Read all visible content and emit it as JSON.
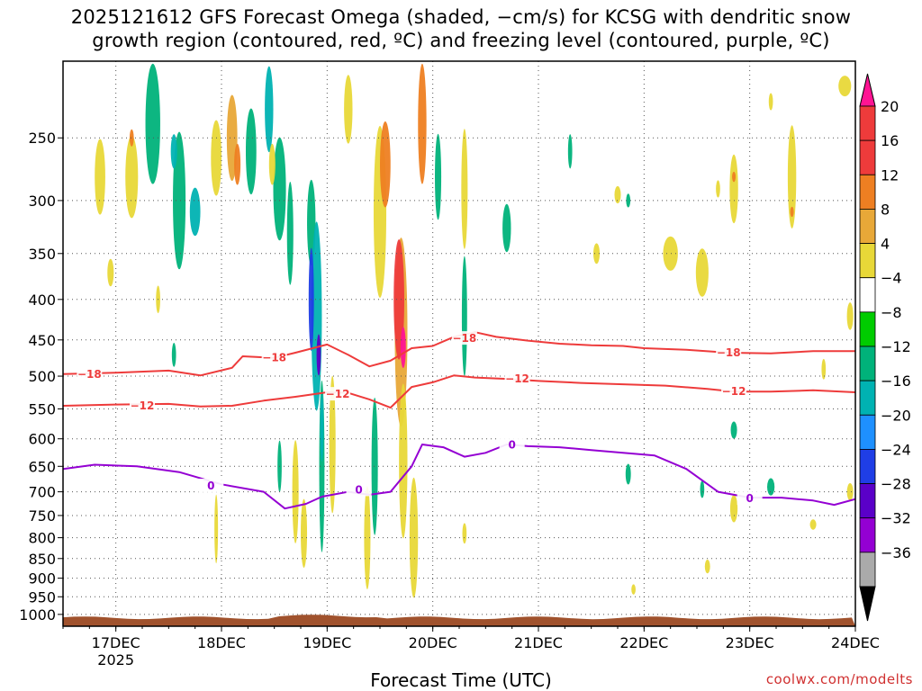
{
  "title_line1": "2025121612 GFS Forecast Omega (shaded, −cm/s) for KCSG with dendritic snow",
  "title_line2": "growth region (contoured, red, ºC) and freezing level (contoured, purple, ºC)",
  "credit": "coolwx.com/modelts",
  "colors": {
    "dgz": "#ee3b3b",
    "freezing": "#9400d3",
    "ground": "#a0522d"
  },
  "chart_data": {
    "type": "heatmap",
    "title": "2025121612 GFS Forecast Omega (shaded, −cm/s) for KCSG with dendritic snow growth region (contoured, red, ºC) and freezing level (contoured, purple, ºC)",
    "xlabel": "Forecast Time (UTC)",
    "ylabel": "",
    "x_range_days": [
      16.5,
      24.0
    ],
    "x_ticks": [
      {
        "day": 17,
        "label": "17DEC",
        "sub": "2025"
      },
      {
        "day": 18,
        "label": "18DEC",
        "sub": ""
      },
      {
        "day": 19,
        "label": "19DEC",
        "sub": ""
      },
      {
        "day": 20,
        "label": "20DEC",
        "sub": ""
      },
      {
        "day": 21,
        "label": "21DEC",
        "sub": ""
      },
      {
        "day": 22,
        "label": "22DEC",
        "sub": ""
      },
      {
        "day": 23,
        "label": "23DEC",
        "sub": ""
      },
      {
        "day": 24,
        "label": "24DEC",
        "sub": ""
      }
    ],
    "y_scale": "log-pressure",
    "y_range_hpa": [
      1035,
      200
    ],
    "y_ticks": [
      250,
      300,
      350,
      400,
      450,
      500,
      550,
      600,
      650,
      700,
      750,
      800,
      850,
      900,
      950,
      1000
    ],
    "colorbar": {
      "labels": [
        "20",
        "16",
        "12",
        "8",
        "4",
        "−4",
        "−8",
        "−12",
        "−16",
        "−20",
        "−24",
        "−28",
        "−32",
        "−36"
      ],
      "colors": [
        "#ff1493",
        "#ee3b3b",
        "#ee7f22",
        "#e8a838",
        "#e8d838",
        "#ffffff",
        "#00cc00",
        "#00b27a",
        "#00b2b2",
        "#1e90ff",
        "#1f3ee6",
        "#5a00c8",
        "#9400d3",
        "#aaaaaa"
      ]
    },
    "contours": [
      {
        "name": "-18",
        "label": "−18",
        "color": "#ee3b3b",
        "label_at": [
          [
            16.75,
            497
          ],
          [
            18.5,
            474
          ],
          [
            20.3,
            448
          ],
          [
            22.8,
            467
          ]
        ],
        "points": [
          [
            16.5,
            497
          ],
          [
            17.0,
            495
          ],
          [
            17.5,
            492
          ],
          [
            17.8,
            499
          ],
          [
            18.1,
            488
          ],
          [
            18.2,
            472
          ],
          [
            18.5,
            474
          ],
          [
            18.7,
            467
          ],
          [
            19.0,
            456
          ],
          [
            19.2,
            470
          ],
          [
            19.4,
            486
          ],
          [
            19.6,
            478
          ],
          [
            19.8,
            461
          ],
          [
            20.0,
            458
          ],
          [
            20.2,
            446
          ],
          [
            20.4,
            440
          ],
          [
            20.6,
            446
          ],
          [
            20.9,
            451
          ],
          [
            21.2,
            455
          ],
          [
            21.5,
            457
          ],
          [
            21.8,
            458
          ],
          [
            22.0,
            461
          ],
          [
            22.4,
            463
          ],
          [
            22.8,
            467
          ],
          [
            23.2,
            468
          ],
          [
            23.6,
            465
          ],
          [
            24.0,
            465
          ]
        ]
      },
      {
        "name": "-12",
        "label": "−12",
        "color": "#ee3b3b",
        "label_at": [
          [
            17.25,
            545
          ],
          [
            19.1,
            527
          ],
          [
            20.8,
            504
          ],
          [
            22.85,
            523
          ]
        ],
        "points": [
          [
            16.5,
            545
          ],
          [
            17.0,
            543
          ],
          [
            17.5,
            542
          ],
          [
            17.8,
            546
          ],
          [
            18.1,
            545
          ],
          [
            18.4,
            537
          ],
          [
            18.7,
            531
          ],
          [
            19.0,
            524
          ],
          [
            19.2,
            525
          ],
          [
            19.4,
            535
          ],
          [
            19.6,
            548
          ],
          [
            19.8,
            516
          ],
          [
            20.0,
            509
          ],
          [
            20.2,
            499
          ],
          [
            20.4,
            502
          ],
          [
            20.7,
            504
          ],
          [
            21.0,
            507
          ],
          [
            21.4,
            510
          ],
          [
            21.8,
            512
          ],
          [
            22.2,
            514
          ],
          [
            22.6,
            519
          ],
          [
            22.85,
            523
          ],
          [
            23.2,
            523
          ],
          [
            23.6,
            521
          ],
          [
            24.0,
            524
          ]
        ]
      },
      {
        "name": "0",
        "label": "0",
        "color": "#9400d3",
        "label_at": [
          [
            17.9,
            688
          ],
          [
            19.3,
            696
          ],
          [
            20.75,
            611
          ],
          [
            23.0,
            714
          ]
        ],
        "points": [
          [
            16.5,
            655
          ],
          [
            16.8,
            647
          ],
          [
            17.2,
            650
          ],
          [
            17.6,
            661
          ],
          [
            18.0,
            685
          ],
          [
            18.4,
            700
          ],
          [
            18.6,
            735
          ],
          [
            18.8,
            725
          ],
          [
            18.95,
            710
          ],
          [
            19.2,
            700
          ],
          [
            19.4,
            706
          ],
          [
            19.6,
            700
          ],
          [
            19.8,
            650
          ],
          [
            19.9,
            610
          ],
          [
            20.1,
            615
          ],
          [
            20.3,
            632
          ],
          [
            20.5,
            625
          ],
          [
            20.7,
            610
          ],
          [
            20.9,
            613
          ],
          [
            21.2,
            615
          ],
          [
            21.5,
            620
          ],
          [
            21.8,
            625
          ],
          [
            22.1,
            630
          ],
          [
            22.4,
            655
          ],
          [
            22.7,
            700
          ],
          [
            23.0,
            712
          ],
          [
            23.3,
            712
          ],
          [
            23.6,
            718
          ],
          [
            23.8,
            727
          ],
          [
            24.0,
            715
          ]
        ]
      }
    ],
    "omega_blobs": [
      {
        "day": 16.85,
        "p": 280,
        "dd": 0.05,
        "dl": 0.22,
        "v": 4
      },
      {
        "day": 16.95,
        "p": 370,
        "dd": 0.03,
        "dl": 0.08,
        "v": 4
      },
      {
        "day": 17.15,
        "p": 280,
        "dd": 0.06,
        "dl": 0.24,
        "v": 4
      },
      {
        "day": 17.15,
        "p": 250,
        "dd": 0.02,
        "dl": 0.05,
        "v": 12
      },
      {
        "day": 17.35,
        "p": 240,
        "dd": 0.07,
        "dl": 0.35,
        "v": -8
      },
      {
        "day": 17.6,
        "p": 300,
        "dd": 0.06,
        "dl": 0.4,
        "v": -8
      },
      {
        "day": 17.55,
        "p": 260,
        "dd": 0.03,
        "dl": 0.1,
        "v": -12
      },
      {
        "day": 17.75,
        "p": 310,
        "dd": 0.05,
        "dl": 0.14,
        "v": -14
      },
      {
        "day": 17.4,
        "p": 400,
        "dd": 0.02,
        "dl": 0.08,
        "v": 4
      },
      {
        "day": 17.55,
        "p": 470,
        "dd": 0.02,
        "dl": 0.07,
        "v": -8
      },
      {
        "day": 17.95,
        "p": 265,
        "dd": 0.05,
        "dl": 0.22,
        "v": 4
      },
      {
        "day": 18.1,
        "p": 250,
        "dd": 0.05,
        "dl": 0.25,
        "v": 8
      },
      {
        "day": 18.15,
        "p": 270,
        "dd": 0.03,
        "dl": 0.12,
        "v": 12
      },
      {
        "day": 18.28,
        "p": 260,
        "dd": 0.05,
        "dl": 0.25,
        "v": -8
      },
      {
        "day": 18.45,
        "p": 230,
        "dd": 0.04,
        "dl": 0.25,
        "v": -12
      },
      {
        "day": 18.55,
        "p": 290,
        "dd": 0.06,
        "dl": 0.3,
        "v": -8
      },
      {
        "day": 18.48,
        "p": 270,
        "dd": 0.03,
        "dl": 0.12,
        "v": 4
      },
      {
        "day": 18.65,
        "p": 330,
        "dd": 0.03,
        "dl": 0.3,
        "v": -8
      },
      {
        "day": 18.85,
        "p": 320,
        "dd": 0.04,
        "dl": 0.25,
        "v": -8
      },
      {
        "day": 18.9,
        "p": 420,
        "dd": 0.05,
        "dl": 0.55,
        "v": -12
      },
      {
        "day": 18.85,
        "p": 400,
        "dd": 0.025,
        "dl": 0.3,
        "v": -22
      },
      {
        "day": 18.92,
        "p": 470,
        "dd": 0.02,
        "dl": 0.12,
        "v": -25
      },
      {
        "day": 18.95,
        "p": 650,
        "dd": 0.025,
        "dl": 0.5,
        "v": -8
      },
      {
        "day": 18.95,
        "p": 580,
        "dd": 0.015,
        "dl": 0.2,
        "v": -12
      },
      {
        "day": 19.05,
        "p": 610,
        "dd": 0.03,
        "dl": 0.4,
        "v": 4
      },
      {
        "day": 18.7,
        "p": 700,
        "dd": 0.03,
        "dl": 0.3,
        "v": 4
      },
      {
        "day": 18.78,
        "p": 790,
        "dd": 0.03,
        "dl": 0.2,
        "v": 4
      },
      {
        "day": 18.55,
        "p": 650,
        "dd": 0.02,
        "dl": 0.15,
        "v": -8
      },
      {
        "day": 19.5,
        "p": 310,
        "dd": 0.06,
        "dl": 0.5,
        "v": 4
      },
      {
        "day": 19.55,
        "p": 270,
        "dd": 0.05,
        "dl": 0.25,
        "v": 12
      },
      {
        "day": 19.2,
        "p": 230,
        "dd": 0.04,
        "dl": 0.2,
        "v": 4
      },
      {
        "day": 19.7,
        "p": 440,
        "dd": 0.06,
        "dl": 0.55,
        "v": 8
      },
      {
        "day": 19.68,
        "p": 400,
        "dd": 0.05,
        "dl": 0.35,
        "v": 16
      },
      {
        "day": 19.72,
        "p": 460,
        "dd": 0.025,
        "dl": 0.12,
        "v": 22
      },
      {
        "day": 19.72,
        "p": 640,
        "dd": 0.04,
        "dl": 0.45,
        "v": 4
      },
      {
        "day": 19.82,
        "p": 800,
        "dd": 0.04,
        "dl": 0.35,
        "v": 4
      },
      {
        "day": 19.9,
        "p": 240,
        "dd": 0.04,
        "dl": 0.35,
        "v": 12
      },
      {
        "day": 20.05,
        "p": 280,
        "dd": 0.03,
        "dl": 0.25,
        "v": -8
      },
      {
        "day": 20.3,
        "p": 290,
        "dd": 0.03,
        "dl": 0.35,
        "v": 4
      },
      {
        "day": 20.3,
        "p": 420,
        "dd": 0.025,
        "dl": 0.35,
        "v": -8
      },
      {
        "day": 19.45,
        "p": 650,
        "dd": 0.03,
        "dl": 0.4,
        "v": -8
      },
      {
        "day": 19.38,
        "p": 800,
        "dd": 0.03,
        "dl": 0.3,
        "v": 4
      },
      {
        "day": 20.7,
        "p": 325,
        "dd": 0.04,
        "dl": 0.14,
        "v": -8
      },
      {
        "day": 21.3,
        "p": 260,
        "dd": 0.02,
        "dl": 0.1,
        "v": -8
      },
      {
        "day": 21.85,
        "p": 300,
        "dd": 0.02,
        "dl": 0.04,
        "v": -8
      },
      {
        "day": 21.75,
        "p": 295,
        "dd": 0.03,
        "dl": 0.05,
        "v": 4
      },
      {
        "day": 21.55,
        "p": 350,
        "dd": 0.03,
        "dl": 0.06,
        "v": 4
      },
      {
        "day": 22.25,
        "p": 350,
        "dd": 0.07,
        "dl": 0.1,
        "v": 4
      },
      {
        "day": 22.55,
        "p": 370,
        "dd": 0.06,
        "dl": 0.14,
        "v": 4
      },
      {
        "day": 22.7,
        "p": 290,
        "dd": 0.02,
        "dl": 0.05,
        "v": 4
      },
      {
        "day": 22.85,
        "p": 290,
        "dd": 0.04,
        "dl": 0.2,
        "v": 4
      },
      {
        "day": 22.85,
        "p": 280,
        "dd": 0.015,
        "dl": 0.03,
        "v": 12
      },
      {
        "day": 23.4,
        "p": 280,
        "dd": 0.04,
        "dl": 0.3,
        "v": 4
      },
      {
        "day": 23.4,
        "p": 310,
        "dd": 0.015,
        "dl": 0.03,
        "v": 12
      },
      {
        "day": 23.2,
        "p": 225,
        "dd": 0.02,
        "dl": 0.05,
        "v": 4
      },
      {
        "day": 23.9,
        "p": 215,
        "dd": 0.06,
        "dl": 0.06,
        "v": 4
      },
      {
        "day": 23.95,
        "p": 420,
        "dd": 0.03,
        "dl": 0.08,
        "v": 4
      },
      {
        "day": 23.7,
        "p": 490,
        "dd": 0.02,
        "dl": 0.06,
        "v": 4
      },
      {
        "day": 22.85,
        "p": 585,
        "dd": 0.03,
        "dl": 0.05,
        "v": -8
      },
      {
        "day": 22.85,
        "p": 735,
        "dd": 0.035,
        "dl": 0.08,
        "v": 4
      },
      {
        "day": 23.2,
        "p": 690,
        "dd": 0.035,
        "dl": 0.05,
        "v": -8
      },
      {
        "day": 22.55,
        "p": 695,
        "dd": 0.02,
        "dl": 0.05,
        "v": -8
      },
      {
        "day": 21.85,
        "p": 665,
        "dd": 0.025,
        "dl": 0.06,
        "v": -8
      },
      {
        "day": 23.6,
        "p": 770,
        "dd": 0.03,
        "dl": 0.03,
        "v": 4
      },
      {
        "day": 23.95,
        "p": 700,
        "dd": 0.03,
        "dl": 0.05,
        "v": 4
      },
      {
        "day": 22.6,
        "p": 870,
        "dd": 0.025,
        "dl": 0.04,
        "v": 4
      },
      {
        "day": 21.9,
        "p": 930,
        "dd": 0.02,
        "dl": 0.03,
        "v": 4
      },
      {
        "day": 17.95,
        "p": 780,
        "dd": 0.015,
        "dl": 0.2,
        "v": 4
      },
      {
        "day": 20.3,
        "p": 790,
        "dd": 0.02,
        "dl": 0.06,
        "v": 4
      }
    ],
    "ground_hpa": 1010
  }
}
